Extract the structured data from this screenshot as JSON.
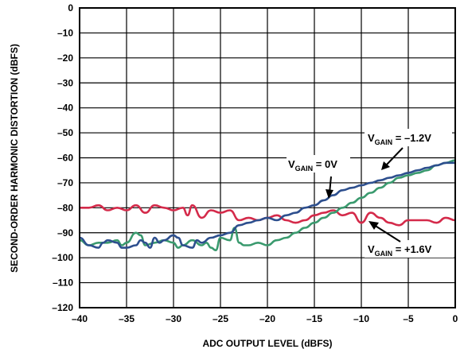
{
  "chart_data": {
    "type": "line",
    "xlabel": "ADC OUTPUT LEVEL (dBFS)",
    "ylabel": "SECOND-ORDER HARMONIC DISTORTION (dBFS)",
    "xlim": [
      -40,
      0
    ],
    "ylim": [
      -120,
      0
    ],
    "x_ticks": [
      -40,
      -35,
      -30,
      -25,
      -20,
      -15,
      -10,
      -5,
      0
    ],
    "x_tick_labels": [
      "–40",
      "–35",
      "–30",
      "–25",
      "–20",
      "–15",
      "–10",
      "–5",
      "0"
    ],
    "y_ticks": [
      0,
      -10,
      -20,
      -30,
      -40,
      -50,
      -60,
      -70,
      -80,
      -90,
      -100,
      -110,
      -120
    ],
    "y_tick_labels": [
      "0",
      "–10",
      "–20",
      "–30",
      "–40",
      "–50",
      "–60",
      "–70",
      "–80",
      "–90",
      "–100",
      "–110",
      "–120"
    ],
    "grid": true,
    "series": [
      {
        "name": "VGAIN = –1.2V",
        "color": "#2d4f8e",
        "x": [
          -40,
          -39,
          -38,
          -37.5,
          -37,
          -36,
          -35.5,
          -35,
          -34,
          -33.5,
          -33,
          -32.5,
          -32,
          -31.5,
          -31,
          -30,
          -29.5,
          -29,
          -28,
          -27.5,
          -27,
          -26,
          -25,
          -24,
          -23,
          -22,
          -21,
          -20,
          -19,
          -18,
          -17,
          -16,
          -15,
          -14,
          -13,
          -12,
          -11,
          -10,
          -9,
          -8,
          -7,
          -6,
          -5,
          -4,
          -3,
          -2,
          -1,
          0
        ],
        "y": [
          -92,
          -95,
          -96,
          -94,
          -93,
          -94,
          -96,
          -96,
          -95,
          -93,
          -94,
          -96,
          -92,
          -94,
          -93,
          -91,
          -92,
          -95,
          -96,
          -93,
          -94,
          -92,
          -91,
          -90,
          -87,
          -86,
          -85,
          -84,
          -85,
          -83,
          -82,
          -80,
          -79,
          -77,
          -75,
          -73,
          -72,
          -71,
          -70,
          -69,
          -68,
          -67,
          -66,
          -65,
          -64,
          -63,
          -62,
          -62
        ]
      },
      {
        "name": "VGAIN = 0V",
        "color": "#3a9a6e",
        "x": [
          -40,
          -39,
          -38,
          -37,
          -36,
          -35.5,
          -35,
          -34,
          -33.5,
          -33,
          -32,
          -31,
          -30,
          -29.5,
          -29,
          -28,
          -27,
          -26.5,
          -26,
          -25.5,
          -25,
          -24,
          -23.5,
          -23,
          -22.5,
          -22,
          -21,
          -20,
          -19,
          -18,
          -17,
          -16,
          -15,
          -14,
          -13,
          -12,
          -11,
          -10,
          -9,
          -8,
          -7,
          -6,
          -5,
          -4,
          -3,
          -2,
          -1,
          0
        ],
        "y": [
          -93,
          -95,
          -94,
          -94,
          -93,
          -95,
          -94,
          -90,
          -91,
          -95,
          -94,
          -93,
          -94,
          -96,
          -95,
          -93,
          -95,
          -94,
          -96,
          -97,
          -92,
          -93,
          -88,
          -94,
          -95,
          -95,
          -94,
          -95,
          -93,
          -92,
          -90,
          -88,
          -86,
          -84,
          -82,
          -80,
          -78,
          -76,
          -74,
          -72,
          -70,
          -68,
          -67,
          -66,
          -65,
          -63,
          -62,
          -61
        ]
      },
      {
        "name": "VGAIN = +1.6V",
        "color": "#d42a4a",
        "x": [
          -40,
          -39,
          -38,
          -37,
          -36,
          -35,
          -34,
          -33,
          -32,
          -31,
          -30,
          -29,
          -28.5,
          -28,
          -27,
          -26,
          -25,
          -24,
          -23,
          -22,
          -21,
          -20,
          -19,
          -18,
          -17,
          -16,
          -15,
          -14,
          -13,
          -12,
          -11,
          -10,
          -9,
          -8,
          -7,
          -6,
          -5,
          -4,
          -3,
          -2,
          -1,
          0
        ],
        "y": [
          -80,
          -80,
          -79,
          -81,
          -80,
          -81,
          -79,
          -82,
          -79,
          -80,
          -81,
          -80,
          -83,
          -79,
          -84,
          -81,
          -82,
          -81,
          -85,
          -84,
          -85,
          -84,
          -83,
          -85,
          -86,
          -85,
          -83,
          -82,
          -81,
          -83,
          -82,
          -86,
          -82,
          -84,
          -86,
          -87,
          -85,
          -85,
          -85,
          -86,
          -84,
          -85
        ]
      }
    ],
    "annotations": [
      {
        "text_main": "V",
        "text_sub": "GAIN",
        "text_rest": " = –1.2V",
        "target": [
          -12,
          -68
        ]
      },
      {
        "text_main": "V",
        "text_sub": "GAIN",
        "text_rest": " = 0V",
        "target": [
          -14,
          -79
        ]
      },
      {
        "text_main": "V",
        "text_sub": "GAIN",
        "text_rest": " = +1.6V",
        "target": [
          -10,
          -85
        ]
      }
    ]
  }
}
